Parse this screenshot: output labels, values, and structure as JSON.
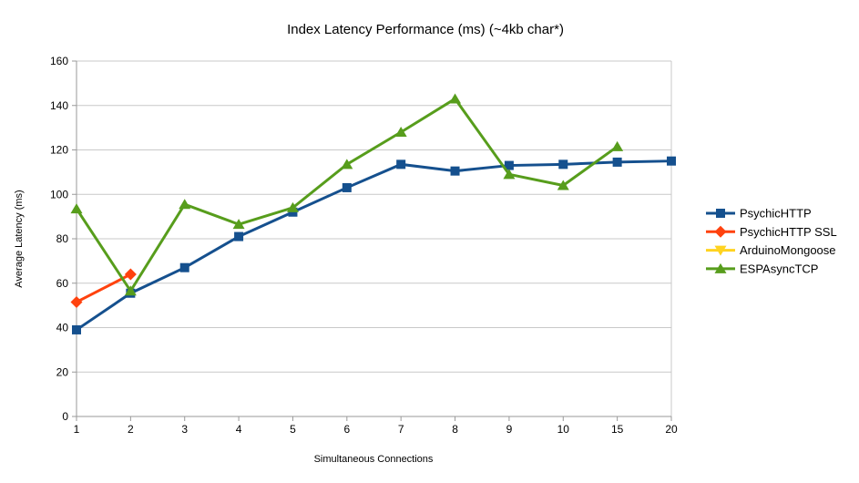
{
  "chart_data": {
    "type": "line",
    "title": "Index Latency Performance (ms) (~4kb char*)",
    "xlabel": "Simultaneous Connections",
    "ylabel": "Average Latency (ms)",
    "categories": [
      "1",
      "2",
      "3",
      "4",
      "5",
      "6",
      "7",
      "8",
      "9",
      "10",
      "15",
      "20"
    ],
    "ylim": [
      0,
      160
    ],
    "ytick_step": 20,
    "ytick_labels": [
      "0",
      "20",
      "40",
      "60",
      "80",
      "100",
      "120",
      "140",
      "160"
    ],
    "grid": "horizontal-only",
    "legend_position": "right",
    "background_color": "#ffffff",
    "gridline_color": "#c9c9c9",
    "axis_color": "#999999",
    "series": [
      {
        "name": "PsychicHTTP",
        "color": "#15508E",
        "marker": "square",
        "values": [
          39,
          55.5,
          67,
          81,
          92,
          103,
          113.5,
          110.5,
          113,
          113.5,
          114.5,
          115
        ]
      },
      {
        "name": "PsychicHTTP SSL",
        "color": "#FF420E",
        "marker": "diamond",
        "values": [
          51.5,
          64,
          null,
          null,
          null,
          null,
          null,
          null,
          null,
          null,
          null,
          null
        ]
      },
      {
        "name": "ArduinoMongoose",
        "color": "#FFD320",
        "marker": "triangle-down",
        "values": [
          null,
          null,
          null,
          null,
          null,
          null,
          null,
          null,
          null,
          null,
          null,
          null
        ]
      },
      {
        "name": "ESPAsyncTCP",
        "color": "#579D1C",
        "marker": "triangle-up",
        "values": [
          93.5,
          56.5,
          95.5,
          86.5,
          94,
          113.5,
          128,
          143,
          109,
          104,
          121.5,
          null
        ]
      }
    ]
  }
}
